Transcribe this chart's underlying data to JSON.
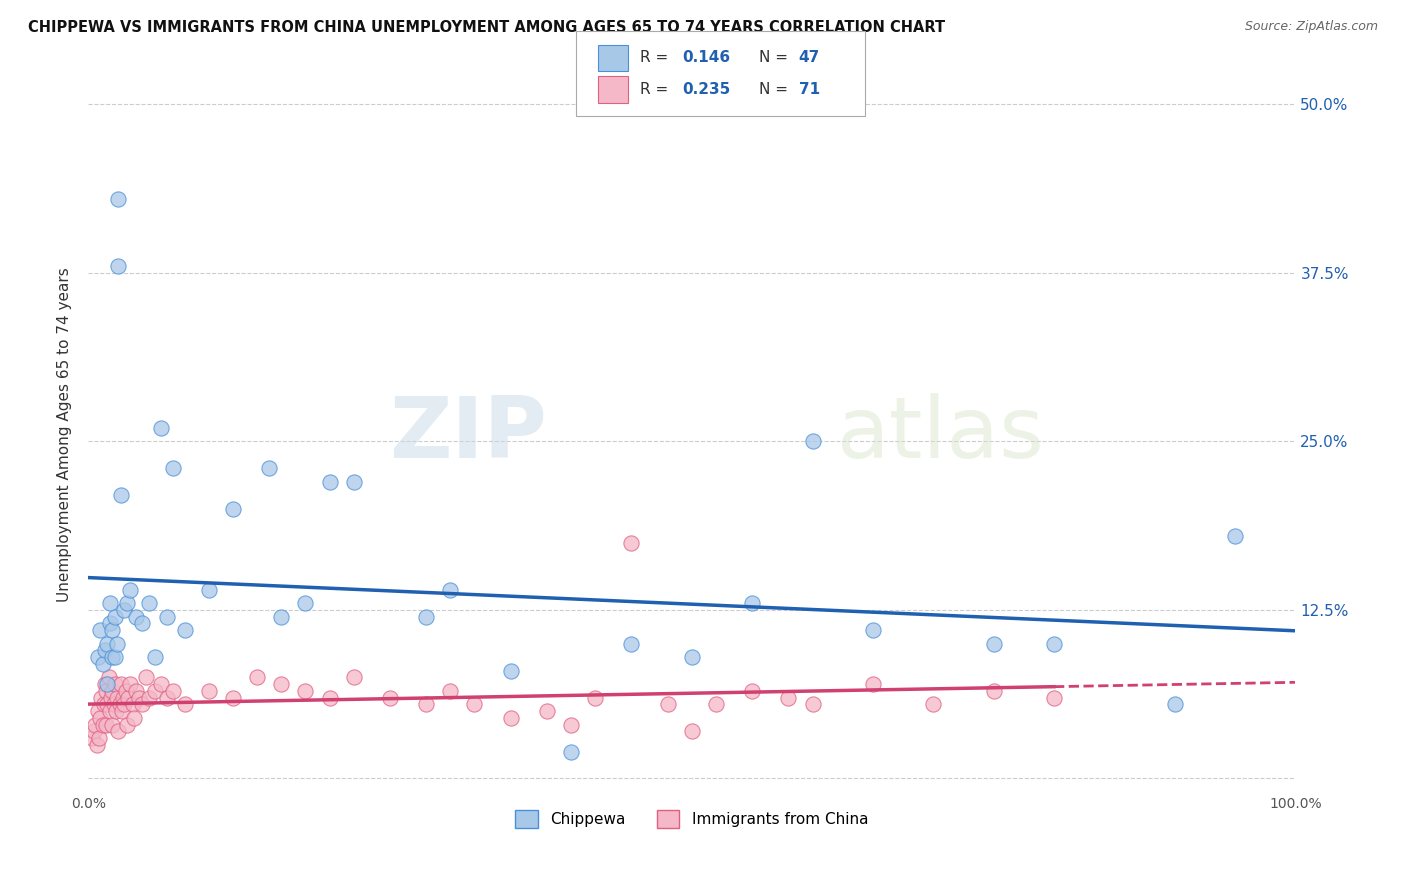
{
  "title": "CHIPPEWA VS IMMIGRANTS FROM CHINA UNEMPLOYMENT AMONG AGES 65 TO 74 YEARS CORRELATION CHART",
  "source": "Source: ZipAtlas.com",
  "ylabel": "Unemployment Among Ages 65 to 74 years",
  "xlim": [
    0,
    1.0
  ],
  "ylim": [
    -0.01,
    0.52
  ],
  "yticks_right": [
    0.0,
    0.125,
    0.25,
    0.375,
    0.5
  ],
  "yticklabels_right": [
    "",
    "12.5%",
    "25.0%",
    "37.5%",
    "50.0%"
  ],
  "color_chippewa_fill": "#a8c8e8",
  "color_chippewa_edge": "#4a90d9",
  "color_immigrants_fill": "#f4b8c8",
  "color_immigrants_edge": "#e06080",
  "color_line_chippewa": "#2060b0",
  "color_line_immigrants": "#d04070",
  "watermark_zip": "ZIP",
  "watermark_atlas": "atlas",
  "chippewa_x": [
    0.008,
    0.01,
    0.012,
    0.014,
    0.016,
    0.016,
    0.018,
    0.018,
    0.02,
    0.02,
    0.022,
    0.022,
    0.024,
    0.025,
    0.025,
    0.027,
    0.03,
    0.032,
    0.035,
    0.04,
    0.045,
    0.05,
    0.055,
    0.06,
    0.065,
    0.07,
    0.08,
    0.1,
    0.12,
    0.15,
    0.16,
    0.18,
    0.2,
    0.22,
    0.28,
    0.3,
    0.35,
    0.4,
    0.45,
    0.5,
    0.55,
    0.6,
    0.65,
    0.75,
    0.8,
    0.9,
    0.95
  ],
  "chippewa_y": [
    0.09,
    0.11,
    0.085,
    0.095,
    0.07,
    0.1,
    0.13,
    0.115,
    0.11,
    0.09,
    0.12,
    0.09,
    0.1,
    0.43,
    0.38,
    0.21,
    0.125,
    0.13,
    0.14,
    0.12,
    0.115,
    0.13,
    0.09,
    0.26,
    0.12,
    0.23,
    0.11,
    0.14,
    0.2,
    0.23,
    0.12,
    0.13,
    0.22,
    0.22,
    0.12,
    0.14,
    0.08,
    0.02,
    0.1,
    0.09,
    0.13,
    0.25,
    0.11,
    0.1,
    0.1,
    0.055,
    0.18
  ],
  "immigrants_x": [
    0.003,
    0.005,
    0.006,
    0.007,
    0.008,
    0.009,
    0.01,
    0.011,
    0.012,
    0.013,
    0.014,
    0.015,
    0.015,
    0.016,
    0.017,
    0.018,
    0.019,
    0.02,
    0.02,
    0.021,
    0.022,
    0.023,
    0.024,
    0.025,
    0.026,
    0.027,
    0.028,
    0.029,
    0.03,
    0.031,
    0.032,
    0.033,
    0.035,
    0.037,
    0.038,
    0.04,
    0.042,
    0.045,
    0.048,
    0.05,
    0.055,
    0.06,
    0.065,
    0.07,
    0.08,
    0.1,
    0.12,
    0.14,
    0.16,
    0.18,
    0.2,
    0.22,
    0.25,
    0.28,
    0.3,
    0.32,
    0.35,
    0.38,
    0.4,
    0.42,
    0.45,
    0.48,
    0.5,
    0.52,
    0.55,
    0.58,
    0.6,
    0.65,
    0.7,
    0.75,
    0.8
  ],
  "immigrants_y": [
    0.03,
    0.035,
    0.04,
    0.025,
    0.05,
    0.03,
    0.045,
    0.06,
    0.04,
    0.055,
    0.07,
    0.04,
    0.065,
    0.055,
    0.075,
    0.05,
    0.06,
    0.065,
    0.04,
    0.055,
    0.07,
    0.05,
    0.06,
    0.035,
    0.055,
    0.07,
    0.05,
    0.06,
    0.055,
    0.065,
    0.04,
    0.06,
    0.07,
    0.055,
    0.045,
    0.065,
    0.06,
    0.055,
    0.075,
    0.06,
    0.065,
    0.07,
    0.06,
    0.065,
    0.055,
    0.065,
    0.06,
    0.075,
    0.07,
    0.065,
    0.06,
    0.075,
    0.06,
    0.055,
    0.065,
    0.055,
    0.045,
    0.05,
    0.04,
    0.06,
    0.175,
    0.055,
    0.035,
    0.055,
    0.065,
    0.06,
    0.055,
    0.07,
    0.055,
    0.065,
    0.06
  ]
}
